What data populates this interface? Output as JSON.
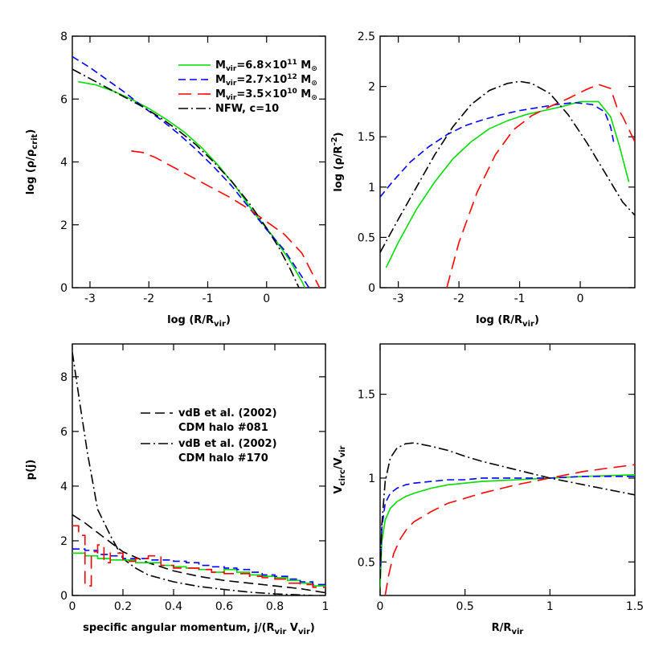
{
  "chart_data": [
    {
      "type": "line",
      "panel": "top-left",
      "xlabel_main": "log (R/R",
      "xlabel_sub": "vir",
      "xlabel_close": ")",
      "ylabel_main": "log (ρ/ρ",
      "ylabel_sub": "crit",
      "ylabel_close": ")",
      "xlim": [
        -3.3,
        1.0
      ],
      "ylim": [
        0,
        8
      ],
      "xticks": [
        "-3",
        "-2",
        "-1",
        "0"
      ],
      "yticks": [
        "0",
        "2",
        "4",
        "6",
        "8"
      ],
      "legend_position": "top-right",
      "series": [
        {
          "legend_id": "green",
          "color": "#00dd00",
          "dash": "",
          "x": [
            -3.2,
            -2.9,
            -2.6,
            -2.3,
            -2.0,
            -1.7,
            -1.4,
            -1.1,
            -0.8,
            -0.5,
            -0.2,
            0.1,
            0.4,
            0.6,
            0.65
          ],
          "y": [
            6.55,
            6.45,
            6.25,
            6.0,
            5.7,
            5.35,
            4.95,
            4.45,
            3.85,
            3.15,
            2.35,
            1.65,
            0.85,
            0.2,
            0.0
          ]
        },
        {
          "legend_id": "blue",
          "color": "#0000ff",
          "dash": "9,5",
          "x": [
            -3.3,
            -3.0,
            -2.7,
            -2.4,
            -2.1,
            -1.8,
            -1.5,
            -1.2,
            -0.9,
            -0.6,
            -0.3,
            0.0,
            0.3,
            0.6,
            0.72
          ],
          "y": [
            7.35,
            7.0,
            6.6,
            6.2,
            5.75,
            5.35,
            4.9,
            4.4,
            3.85,
            3.25,
            2.55,
            1.85,
            1.2,
            0.35,
            0.0
          ]
        },
        {
          "legend_id": "red",
          "color": "#ff0000",
          "dash": "16,8",
          "x": [
            -2.3,
            -2.1,
            -1.9,
            -1.7,
            -1.5,
            -1.2,
            -0.9,
            -0.6,
            -0.3,
            0.0,
            0.3,
            0.6,
            0.9
          ],
          "y": [
            4.35,
            4.3,
            4.15,
            3.95,
            3.75,
            3.45,
            3.15,
            2.85,
            2.5,
            2.1,
            1.7,
            1.1,
            0.0
          ]
        },
        {
          "legend_id": "black",
          "color": "#000000",
          "dash": "12,4,2,4",
          "x": [
            -3.3,
            -3.0,
            -2.7,
            -2.4,
            -2.1,
            -1.8,
            -1.5,
            -1.2,
            -0.9,
            -0.6,
            -0.3,
            0.0,
            0.2,
            0.4,
            0.55
          ],
          "y": [
            6.95,
            6.65,
            6.35,
            6.05,
            5.75,
            5.4,
            5.0,
            4.55,
            4.0,
            3.4,
            2.7,
            1.9,
            1.3,
            0.6,
            0.0
          ]
        }
      ],
      "legend": [
        {
          "color": "#00dd00",
          "dash": "",
          "pre": "M",
          "sub": "vir",
          "mid": "=6.8×10",
          "sup": "11",
          "post": " M",
          "post_sub": "⊙"
        },
        {
          "color": "#0000ff",
          "dash": "9,5",
          "pre": "M",
          "sub": "vir",
          "mid": "=2.7×10",
          "sup": "12",
          "post": " M",
          "post_sub": "⊙"
        },
        {
          "color": "#ff0000",
          "dash": "16,8",
          "pre": "M",
          "sub": "vir",
          "mid": "=3.5×10",
          "sup": "10",
          "post": " M",
          "post_sub": "⊙"
        },
        {
          "color": "#000000",
          "dash": "12,4,2,4",
          "text": "NFW, c=10"
        }
      ]
    },
    {
      "type": "line",
      "panel": "top-right",
      "xlabel_main": "log (R/R",
      "xlabel_sub": "vir",
      "xlabel_close": ")",
      "ylabel_main": "log (ρ/R",
      "ylabel_sup": "-2",
      "ylabel_close": ")",
      "xlim": [
        -3.3,
        0.9
      ],
      "ylim": [
        0,
        2.5
      ],
      "xticks": [
        "-3",
        "-2",
        "-1",
        "0"
      ],
      "yticks": [
        "0",
        "0.5",
        "1",
        "1.5",
        "2",
        "2.5"
      ],
      "series": [
        {
          "legend_id": "green",
          "color": "#00dd00",
          "dash": "",
          "x": [
            -3.2,
            -3.0,
            -2.7,
            -2.4,
            -2.1,
            -1.8,
            -1.5,
            -1.2,
            -0.9,
            -0.6,
            -0.3,
            0.0,
            0.3,
            0.5,
            0.65,
            0.8
          ],
          "y": [
            0.2,
            0.45,
            0.78,
            1.05,
            1.28,
            1.45,
            1.58,
            1.66,
            1.72,
            1.76,
            1.8,
            1.85,
            1.85,
            1.7,
            1.4,
            1.05
          ]
        },
        {
          "legend_id": "blue",
          "color": "#0000ff",
          "dash": "9,5",
          "x": [
            -3.3,
            -3.1,
            -2.8,
            -2.5,
            -2.2,
            -1.9,
            -1.6,
            -1.3,
            -1.0,
            -0.7,
            -0.4,
            -0.1,
            0.2,
            0.4,
            0.5,
            0.55
          ],
          "y": [
            0.9,
            1.05,
            1.25,
            1.4,
            1.52,
            1.61,
            1.67,
            1.72,
            1.76,
            1.79,
            1.82,
            1.84,
            1.82,
            1.75,
            1.6,
            1.45
          ]
        },
        {
          "legend_id": "red",
          "color": "#ff0000",
          "dash": "16,8",
          "x": [
            -2.2,
            -2.0,
            -1.7,
            -1.4,
            -1.1,
            -0.8,
            -0.5,
            -0.2,
            0.1,
            0.3,
            0.5,
            0.6,
            0.7,
            0.9
          ],
          "y": [
            0.0,
            0.45,
            0.95,
            1.32,
            1.57,
            1.71,
            1.8,
            1.88,
            1.97,
            2.02,
            1.98,
            1.8,
            1.7,
            1.45
          ]
        },
        {
          "legend_id": "black",
          "color": "#000000",
          "dash": "12,4,2,4",
          "x": [
            -3.3,
            -3.0,
            -2.7,
            -2.4,
            -2.1,
            -1.8,
            -1.5,
            -1.2,
            -1.0,
            -0.8,
            -0.5,
            -0.2,
            0.1,
            0.4,
            0.7,
            0.9
          ],
          "y": [
            0.35,
            0.68,
            1.0,
            1.32,
            1.6,
            1.82,
            1.96,
            2.03,
            2.05,
            2.03,
            1.93,
            1.72,
            1.45,
            1.15,
            0.85,
            0.72
          ]
        }
      ]
    },
    {
      "type": "line",
      "panel": "bottom-left",
      "xlabel_main": "specific angular momentum, j/(R",
      "xlabel_sub": "vir",
      "xlabel_mid": " V",
      "xlabel_sub2": "vir",
      "xlabel_close": ")",
      "ylabel_text": "p(j)",
      "xlim": [
        0,
        1
      ],
      "ylim": [
        0,
        9.2
      ],
      "xticks": [
        "0",
        "0.2",
        "0.4",
        "0.6",
        "0.8",
        "1"
      ],
      "yticks": [
        "0",
        "2",
        "4",
        "6",
        "8"
      ],
      "legend": [
        {
          "color": "#000000",
          "dash": "12,6",
          "line1": "vdB et al. (2002)",
          "line2": "CDM halo #081"
        },
        {
          "color": "#000000",
          "dash": "12,4,2,4",
          "line1": "vdB et al. (2002)",
          "line2": "CDM halo #170"
        }
      ],
      "series": [
        {
          "legend_id": "halo-081",
          "color": "#000000",
          "dash": "12,6",
          "x": [
            0.0,
            0.05,
            0.1,
            0.15,
            0.2,
            0.3,
            0.4,
            0.5,
            0.6,
            0.7,
            0.8,
            0.9,
            1.0
          ],
          "y": [
            2.95,
            2.65,
            2.3,
            1.95,
            1.6,
            1.2,
            0.9,
            0.7,
            0.55,
            0.45,
            0.35,
            0.25,
            0.1
          ]
        },
        {
          "legend_id": "halo-170",
          "color": "#000000",
          "dash": "12,4,2,4",
          "x": [
            0.0,
            0.03,
            0.06,
            0.1,
            0.15,
            0.2,
            0.25,
            0.3,
            0.4,
            0.5,
            0.6,
            0.7,
            0.8,
            0.9,
            0.95
          ],
          "y": [
            8.9,
            7.0,
            5.2,
            3.15,
            2.2,
            1.35,
            1.0,
            0.75,
            0.5,
            0.33,
            0.22,
            0.12,
            0.06,
            0.02,
            0.0
          ]
        },
        {
          "legend_id": "green-hist",
          "color": "#00dd00",
          "dash": "",
          "step": true,
          "edges": [
            0,
            0.05,
            0.1,
            0.15,
            0.2,
            0.25,
            0.3,
            0.35,
            0.4,
            0.45,
            0.5,
            0.55,
            0.6,
            0.65,
            0.7,
            0.75,
            0.8,
            0.85,
            0.9,
            0.95,
            1.0
          ],
          "values": [
            1.55,
            1.45,
            1.35,
            1.3,
            1.3,
            1.2,
            1.2,
            1.1,
            1.05,
            1.0,
            0.95,
            0.85,
            0.95,
            0.85,
            0.75,
            0.7,
            0.65,
            0.55,
            0.45,
            0.35
          ]
        },
        {
          "legend_id": "blue-hist",
          "color": "#0000ff",
          "dash": "9,5",
          "step": true,
          "edges": [
            0,
            0.05,
            0.1,
            0.15,
            0.2,
            0.25,
            0.3,
            0.35,
            0.4,
            0.45,
            0.5,
            0.55,
            0.6,
            0.65,
            0.7,
            0.75,
            0.8,
            0.85,
            0.9,
            0.95,
            1.0
          ],
          "values": [
            1.7,
            1.65,
            1.5,
            1.45,
            1.35,
            1.35,
            1.3,
            1.3,
            1.25,
            1.2,
            1.1,
            1.05,
            1.0,
            0.95,
            0.85,
            0.75,
            0.7,
            0.6,
            0.5,
            0.4
          ]
        },
        {
          "legend_id": "red-hist",
          "color": "#ff0000",
          "dash": "16,8",
          "step": true,
          "edges": [
            0,
            0.025,
            0.05,
            0.075,
            0.1,
            0.125,
            0.15,
            0.2,
            0.25,
            0.3,
            0.35,
            0.4,
            0.45,
            0.5,
            0.55,
            0.6,
            0.65,
            0.7,
            0.75,
            0.8,
            0.85,
            0.9,
            0.95,
            1.0
          ],
          "values": [
            2.55,
            2.2,
            0.35,
            1.6,
            1.85,
            1.2,
            1.55,
            1.25,
            1.35,
            1.45,
            1.1,
            1.0,
            1.0,
            0.95,
            0.85,
            0.8,
            0.8,
            0.7,
            0.65,
            0.6,
            0.45,
            0.4,
            0.3
          ]
        }
      ]
    },
    {
      "type": "line",
      "panel": "bottom-right",
      "xlabel_main": "R/R",
      "xlabel_sub": "vir",
      "ylabel_main": "V",
      "ylabel_sub": "circ",
      "ylabel_mid": "/V",
      "ylabel_sub2": "vir",
      "xlim": [
        0,
        1.5
      ],
      "ylim": [
        0.3,
        1.8
      ],
      "xticks": [
        "0",
        "0.5",
        "1",
        "1.5"
      ],
      "yticks": [
        "0.5",
        "1",
        "1.5"
      ],
      "series": [
        {
          "legend_id": "green",
          "color": "#00dd00",
          "dash": "",
          "x": [
            0.0,
            0.01,
            0.03,
            0.06,
            0.1,
            0.15,
            0.2,
            0.3,
            0.4,
            0.5,
            0.6,
            0.8,
            1.0,
            1.2,
            1.5
          ],
          "y": [
            0.35,
            0.62,
            0.75,
            0.82,
            0.86,
            0.89,
            0.91,
            0.94,
            0.96,
            0.97,
            0.98,
            0.99,
            1.0,
            1.01,
            1.02
          ]
        },
        {
          "legend_id": "blue",
          "color": "#0000ff",
          "dash": "9,5",
          "x": [
            0.0,
            0.01,
            0.03,
            0.06,
            0.1,
            0.15,
            0.2,
            0.3,
            0.4,
            0.5,
            0.6,
            0.8,
            1.0,
            1.2,
            1.5
          ],
          "y": [
            0.4,
            0.7,
            0.85,
            0.91,
            0.94,
            0.96,
            0.97,
            0.98,
            0.99,
            0.99,
            1.0,
            1.0,
            1.0,
            1.01,
            1.01
          ]
        },
        {
          "legend_id": "red",
          "color": "#ff0000",
          "dash": "16,8",
          "x": [
            0.03,
            0.05,
            0.08,
            0.12,
            0.16,
            0.2,
            0.3,
            0.4,
            0.5,
            0.6,
            0.8,
            1.0,
            1.2,
            1.5
          ],
          "y": [
            0.3,
            0.42,
            0.55,
            0.64,
            0.7,
            0.74,
            0.8,
            0.85,
            0.88,
            0.91,
            0.96,
            1.0,
            1.04,
            1.08
          ]
        },
        {
          "legend_id": "black",
          "color": "#000000",
          "dash": "12,4,2,4",
          "x": [
            0.0,
            0.01,
            0.03,
            0.06,
            0.1,
            0.15,
            0.2,
            0.25,
            0.3,
            0.4,
            0.5,
            0.6,
            0.8,
            1.0,
            1.2,
            1.5
          ],
          "y": [
            0.4,
            0.72,
            0.98,
            1.12,
            1.18,
            1.205,
            1.21,
            1.2,
            1.19,
            1.165,
            1.13,
            1.1,
            1.05,
            1.0,
            0.96,
            0.9
          ]
        }
      ]
    }
  ]
}
